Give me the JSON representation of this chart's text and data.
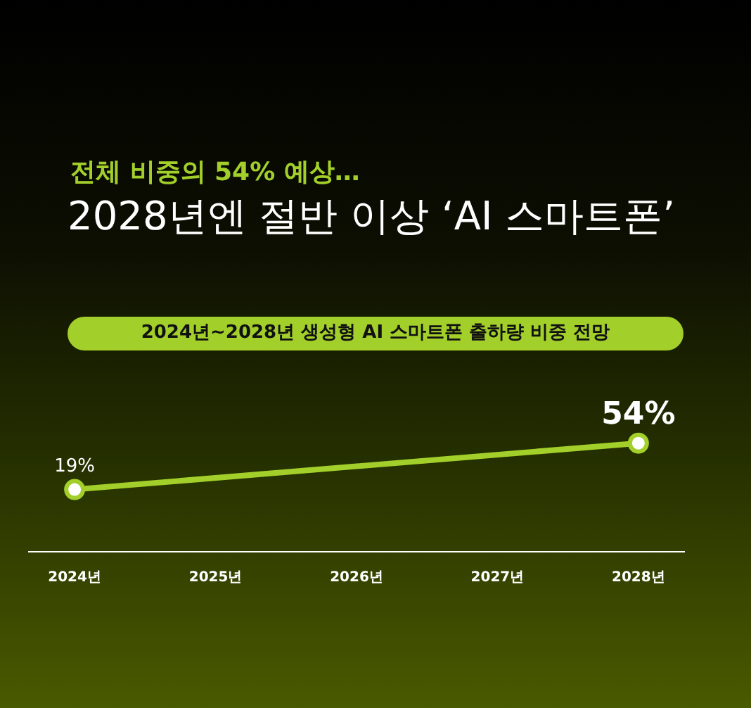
{
  "chart_data": {
    "type": "line",
    "subtitle": "전체 비중의 54% 예상…",
    "title": "2028년엔 절반 이상 ‘AI 스마트폰’",
    "annotations": [
      "2024년~2028년 생성형 AI 스마트폰 출하량 비중 전망"
    ],
    "x": [
      2024,
      2028
    ],
    "xlim": [
      2023.67,
      2028.33
    ],
    "xticks": [
      {
        "value": 2024,
        "label": "2024년"
      },
      {
        "value": 2025,
        "label": "2025년"
      },
      {
        "value": 2026,
        "label": "2026년"
      },
      {
        "value": 2027,
        "label": "2027년"
      },
      {
        "value": 2028,
        "label": "2028년"
      }
    ],
    "series": [
      {
        "color": "#a2cf2a",
        "values": [
          19,
          54
        ],
        "value_labels": [
          "19%",
          "54%"
        ]
      }
    ],
    "marker": "circle",
    "line_style": "solid",
    "grid": false,
    "legend": false,
    "tick_labels": "x"
  }
}
